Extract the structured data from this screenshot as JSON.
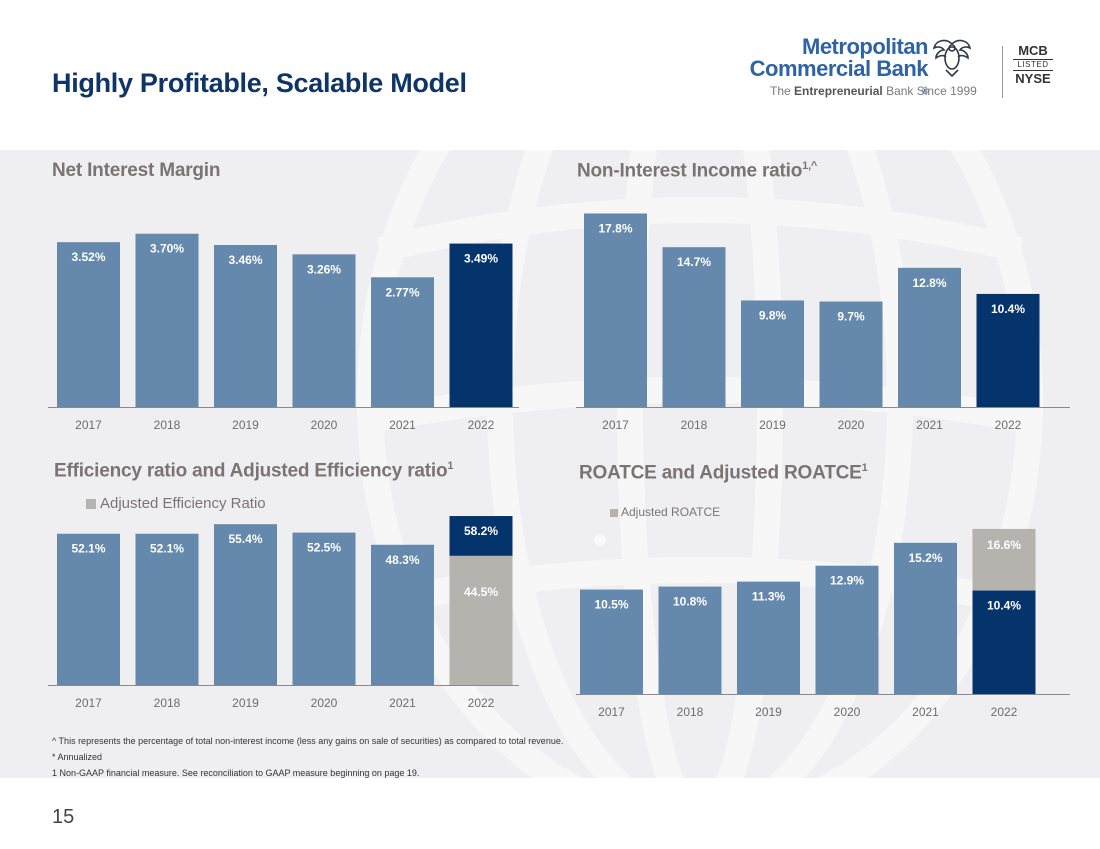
{
  "header": {
    "title": "Highly Profitable, Scalable Model",
    "logo": {
      "name_line1": "Metropolitan",
      "name_line2": "Commercial Bank",
      "registered": "®",
      "tagline_pre": "The",
      "tagline_bold": "Entrepreneurial",
      "tagline_post": "Bank Since 1999",
      "ticker": "MCB",
      "listed": "LISTED",
      "exchange": "NYSE"
    }
  },
  "colors": {
    "primary_bar": "#6589ad",
    "highlight_bar": "#04346b",
    "adjusted_bar": "#b6b2ad",
    "axis": "#8a8a8a",
    "title_blue": "#0f3468"
  },
  "chart_data": [
    {
      "type": "bar",
      "title": "Net Interest Margin",
      "categories": [
        "2017",
        "2018",
        "2019",
        "2020",
        "2021",
        "2022"
      ],
      "series": [
        {
          "name": "Net Interest Margin",
          "values": [
            3.52,
            3.7,
            3.46,
            3.26,
            2.77,
            3.49
          ]
        }
      ],
      "labels": [
        "3.52%",
        "3.70%",
        "3.46%",
        "3.26%",
        "2.77%",
        "3.49%"
      ],
      "highlight_index": 5,
      "ylim": [
        0,
        4.1
      ]
    },
    {
      "type": "bar",
      "title": "Non-Interest Income ratio",
      "title_sup": "1,^",
      "categories": [
        "2017",
        "2018",
        "2019",
        "2020",
        "2021",
        "2022"
      ],
      "series": [
        {
          "name": "Non-Interest Income ratio",
          "values": [
            17.8,
            14.7,
            9.8,
            9.7,
            12.8,
            10.4
          ]
        }
      ],
      "labels": [
        "17.8%",
        "14.7%",
        "9.8%",
        "9.7%",
        "12.8%",
        "10.4%"
      ],
      "highlight_index": 5,
      "ylim": [
        0,
        19.5
      ]
    },
    {
      "type": "bar",
      "title": "Efficiency ratio and Adjusted Efficiency ratio",
      "title_sup": "1",
      "legend": "Adjusted Efficiency Ratio",
      "categories": [
        "2017",
        "2018",
        "2019",
        "2020",
        "2021",
        "2022"
      ],
      "series": [
        {
          "name": "Efficiency Ratio",
          "values": [
            52.1,
            52.1,
            55.4,
            52.5,
            48.3,
            58.2
          ]
        },
        {
          "name": "Adjusted Efficiency Ratio",
          "values": [
            null,
            null,
            null,
            null,
            null,
            44.5
          ]
        }
      ],
      "labels": [
        "52.1%",
        "52.1%",
        "55.4%",
        "52.5%",
        "48.3%",
        "58.2%"
      ],
      "adjusted_labels": [
        null,
        null,
        null,
        null,
        null,
        "44.5%"
      ],
      "highlight_index": 5,
      "ylim": [
        0,
        62
      ]
    },
    {
      "type": "bar",
      "title": "ROATCE and Adjusted ROATCE",
      "title_sup": "1",
      "legend": "Adjusted ROATCE",
      "categories": [
        "2017",
        "2018",
        "2019",
        "2020",
        "2021",
        "2022"
      ],
      "series": [
        {
          "name": "ROATCE",
          "values": [
            10.5,
            10.8,
            11.3,
            12.9,
            15.2,
            10.4
          ]
        },
        {
          "name": "Adjusted ROATCE",
          "values": [
            null,
            null,
            null,
            null,
            null,
            16.6
          ]
        }
      ],
      "labels": [
        "10.5%",
        "10.8%",
        "11.3%",
        "12.9%",
        "15.2%",
        "10.4%"
      ],
      "adjusted_labels": [
        null,
        null,
        null,
        null,
        null,
        "16.6%"
      ],
      "highlight_index": 5,
      "ylim": [
        0,
        18.5
      ]
    }
  ],
  "footnotes": [
    "^ This represents the percentage of total non-interest income (less any gains on sale of securities) as compared to total revenue.",
    "* Annualized",
    "1 Non-GAAP financial measure. See reconciliation to GAAP measure beginning on page 19."
  ],
  "page_number": "15"
}
